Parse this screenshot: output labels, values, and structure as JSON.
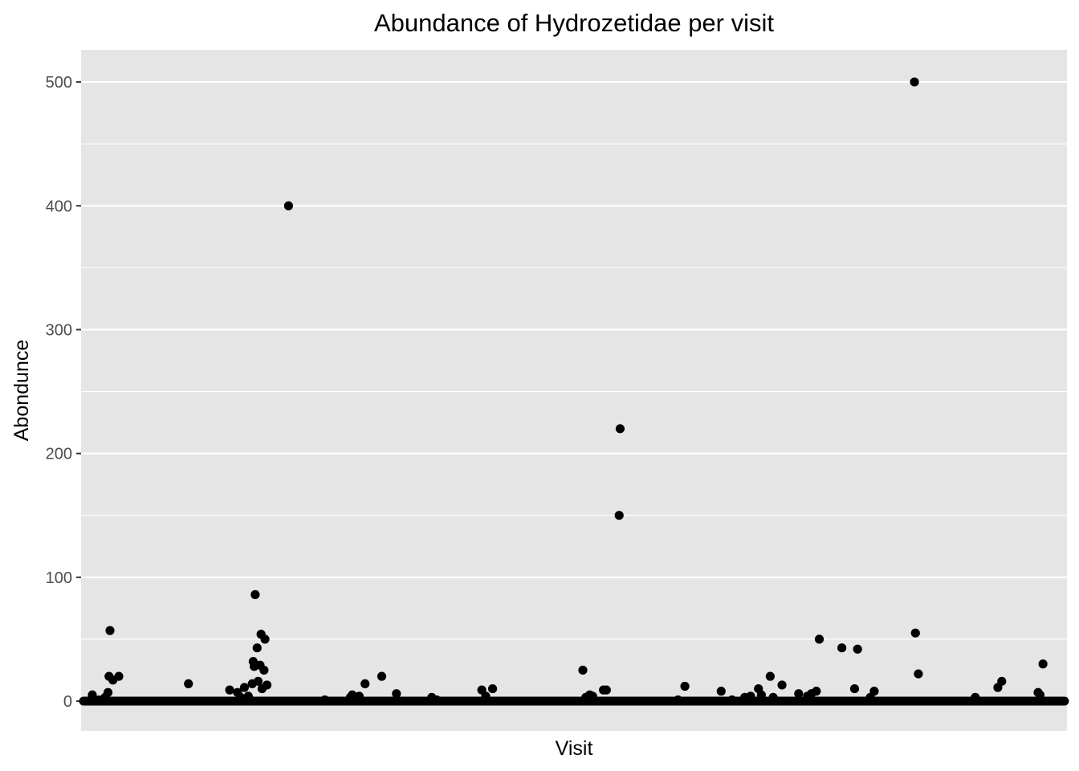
{
  "chart_data": {
    "type": "scatter",
    "title": "Abundance of Hydrozetidae per visit",
    "xlabel": "Visit",
    "ylabel": "Abondunce",
    "x_ticks": "none",
    "y_ticks": [
      0,
      100,
      200,
      300,
      400,
      500
    ],
    "ylim": [
      -24,
      526
    ],
    "xlim": [
      0,
      1000
    ],
    "grid": true,
    "background": "#e5e5e5",
    "grid_color": "#ffffff",
    "point_color": "#000000",
    "zero_run": [
      0,
      1000
    ],
    "points": [
      {
        "x": 9,
        "y": 5
      },
      {
        "x": 16,
        "y": 1
      },
      {
        "x": 22,
        "y": 3
      },
      {
        "x": 25,
        "y": 7
      },
      {
        "x": 26,
        "y": 20
      },
      {
        "x": 27,
        "y": 57
      },
      {
        "x": 30,
        "y": 17
      },
      {
        "x": 36,
        "y": 20
      },
      {
        "x": 107,
        "y": 14
      },
      {
        "x": 149,
        "y": 9
      },
      {
        "x": 157,
        "y": 7
      },
      {
        "x": 160,
        "y": 3
      },
      {
        "x": 164,
        "y": 11
      },
      {
        "x": 168,
        "y": 4
      },
      {
        "x": 170,
        "y": 1
      },
      {
        "x": 172,
        "y": 14
      },
      {
        "x": 173,
        "y": 32
      },
      {
        "x": 174,
        "y": 28
      },
      {
        "x": 175,
        "y": 86
      },
      {
        "x": 177,
        "y": 43
      },
      {
        "x": 178,
        "y": 16
      },
      {
        "x": 180,
        "y": 29
      },
      {
        "x": 181,
        "y": 54
      },
      {
        "x": 182,
        "y": 10
      },
      {
        "x": 184,
        "y": 25
      },
      {
        "x": 185,
        "y": 50
      },
      {
        "x": 187,
        "y": 13
      },
      {
        "x": 209,
        "y": 400
      },
      {
        "x": 246,
        "y": 1
      },
      {
        "x": 272,
        "y": 3
      },
      {
        "x": 274,
        "y": 5
      },
      {
        "x": 281,
        "y": 4
      },
      {
        "x": 287,
        "y": 14
      },
      {
        "x": 304,
        "y": 20
      },
      {
        "x": 319,
        "y": 6
      },
      {
        "x": 355,
        "y": 3
      },
      {
        "x": 360,
        "y": 1
      },
      {
        "x": 406,
        "y": 9
      },
      {
        "x": 410,
        "y": 4
      },
      {
        "x": 417,
        "y": 10
      },
      {
        "x": 509,
        "y": 25
      },
      {
        "x": 512,
        "y": 3
      },
      {
        "x": 516,
        "y": 5
      },
      {
        "x": 519,
        "y": 4
      },
      {
        "x": 530,
        "y": 9
      },
      {
        "x": 533,
        "y": 9
      },
      {
        "x": 546,
        "y": 150
      },
      {
        "x": 547,
        "y": 220
      },
      {
        "x": 606,
        "y": 1
      },
      {
        "x": 613,
        "y": 12
      },
      {
        "x": 650,
        "y": 8
      },
      {
        "x": 661,
        "y": 1
      },
      {
        "x": 674,
        "y": 3
      },
      {
        "x": 680,
        "y": 4
      },
      {
        "x": 688,
        "y": 10
      },
      {
        "x": 691,
        "y": 5
      },
      {
        "x": 700,
        "y": 20
      },
      {
        "x": 703,
        "y": 3
      },
      {
        "x": 712,
        "y": 13
      },
      {
        "x": 729,
        "y": 6
      },
      {
        "x": 738,
        "y": 4
      },
      {
        "x": 742,
        "y": 6
      },
      {
        "x": 747,
        "y": 8
      },
      {
        "x": 750,
        "y": 50
      },
      {
        "x": 773,
        "y": 43
      },
      {
        "x": 786,
        "y": 10
      },
      {
        "x": 789,
        "y": 42
      },
      {
        "x": 802,
        "y": 3
      },
      {
        "x": 806,
        "y": 8
      },
      {
        "x": 847,
        "y": 500
      },
      {
        "x": 848,
        "y": 55
      },
      {
        "x": 851,
        "y": 22
      },
      {
        "x": 909,
        "y": 3
      },
      {
        "x": 932,
        "y": 11
      },
      {
        "x": 936,
        "y": 16
      },
      {
        "x": 973,
        "y": 7
      },
      {
        "x": 975,
        "y": 5
      },
      {
        "x": 978,
        "y": 30
      }
    ]
  }
}
